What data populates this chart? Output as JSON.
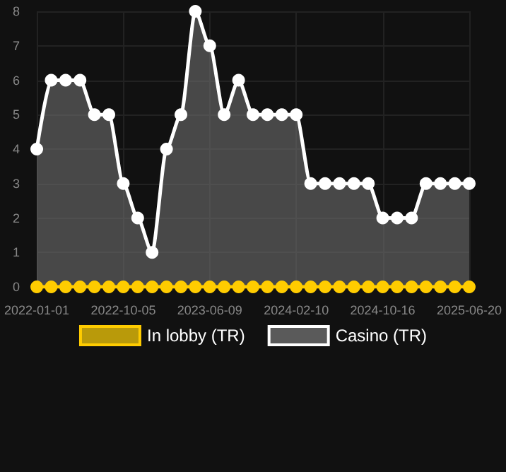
{
  "chart_data": {
    "type": "area",
    "categories": [
      "2022-01-01",
      null,
      null,
      null,
      null,
      null,
      "2022-10-05",
      null,
      null,
      null,
      null,
      null,
      "2023-06-09",
      null,
      null,
      null,
      null,
      null,
      "2024-02-10",
      null,
      null,
      null,
      null,
      null,
      "2024-10-16",
      null,
      null,
      null,
      null,
      null,
      "2025-06-20"
    ],
    "series": [
      {
        "name": "In lobby (TR)",
        "type": "line",
        "color": "#ffcc00",
        "values": [
          0,
          0,
          0,
          0,
          0,
          0,
          0,
          0,
          0,
          0,
          0,
          0,
          0,
          0,
          0,
          0,
          0,
          0,
          0,
          0,
          0,
          0,
          0,
          0,
          0,
          0,
          0,
          0,
          0,
          0,
          0
        ]
      },
      {
        "name": "Casino (TR)",
        "color": "#ffffff",
        "values": [
          4,
          6,
          6,
          6,
          5,
          5,
          3,
          2,
          1,
          4,
          5,
          8,
          7,
          5,
          6,
          5,
          5,
          5,
          5,
          3,
          3,
          3,
          3,
          3,
          2,
          2,
          2,
          3,
          3,
          3,
          3
        ]
      }
    ],
    "ylim": [
      0,
      8
    ],
    "yticks": [
      0,
      1,
      2,
      3,
      4,
      5,
      6,
      7,
      8
    ],
    "grid": true,
    "legend": "bottom",
    "marker": "circle",
    "line_style": "solid"
  }
}
